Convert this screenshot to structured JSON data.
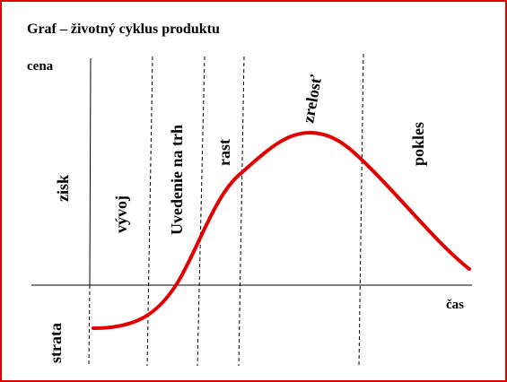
{
  "title": "Graf – životný cyklus produktu",
  "axes": {
    "y": "cena",
    "x": "čas"
  },
  "sides": {
    "profit": "zisk",
    "loss": "strata"
  },
  "phases": [
    {
      "label": "vývoj"
    },
    {
      "label": "Uvedenie na trh"
    },
    {
      "label": "rast"
    },
    {
      "label": "zrelosť"
    },
    {
      "label": "pokles"
    }
  ]
}
